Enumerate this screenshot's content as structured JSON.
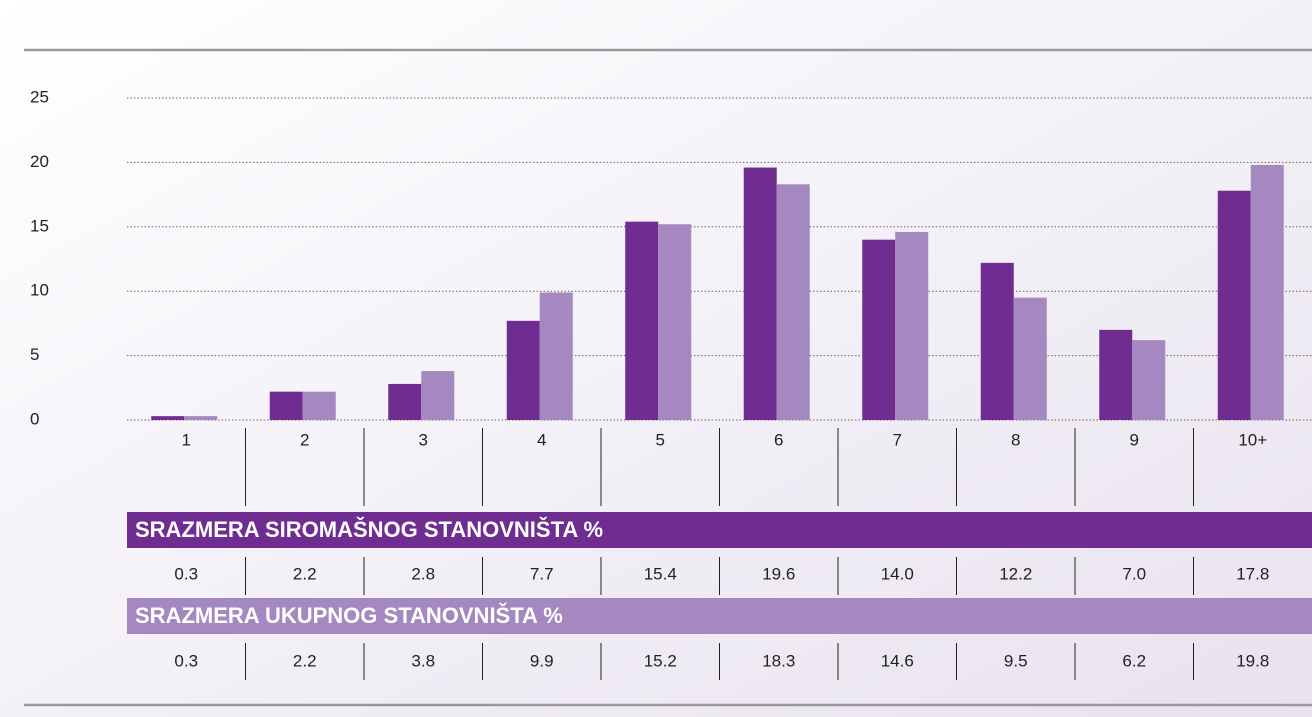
{
  "chart_data": {
    "type": "bar",
    "categories": [
      "1",
      "2",
      "3",
      "4",
      "5",
      "6",
      "7",
      "8",
      "9",
      "10+"
    ],
    "series": [
      {
        "name": "SRAZMERA SIROMAŠNOG STANOVNIŠTA %",
        "color": "#6f2c91",
        "values": [
          0.3,
          2.2,
          2.8,
          7.7,
          15.4,
          19.6,
          14.0,
          12.2,
          7.0,
          17.8
        ],
        "value_labels": [
          "0.3",
          "2.2",
          "2.8",
          "7.7",
          "15.4",
          "19.6",
          "14.0",
          "12.2",
          "7.0",
          "17.8"
        ]
      },
      {
        "name": "SRAZMERA UKUPNOG STANOVNIŠTA %",
        "color": "#a688c0",
        "values": [
          0.3,
          2.2,
          3.8,
          9.9,
          15.2,
          18.3,
          14.6,
          9.5,
          6.2,
          19.8
        ],
        "value_labels": [
          "0.3",
          "2.2",
          "3.8",
          "9.9",
          "15.2",
          "18.3",
          "14.6",
          "9.5",
          "6.2",
          "19.8"
        ]
      }
    ],
    "ylim": [
      0,
      25
    ],
    "yticks": [
      0,
      5,
      10,
      15,
      20,
      25
    ],
    "grid": true
  }
}
